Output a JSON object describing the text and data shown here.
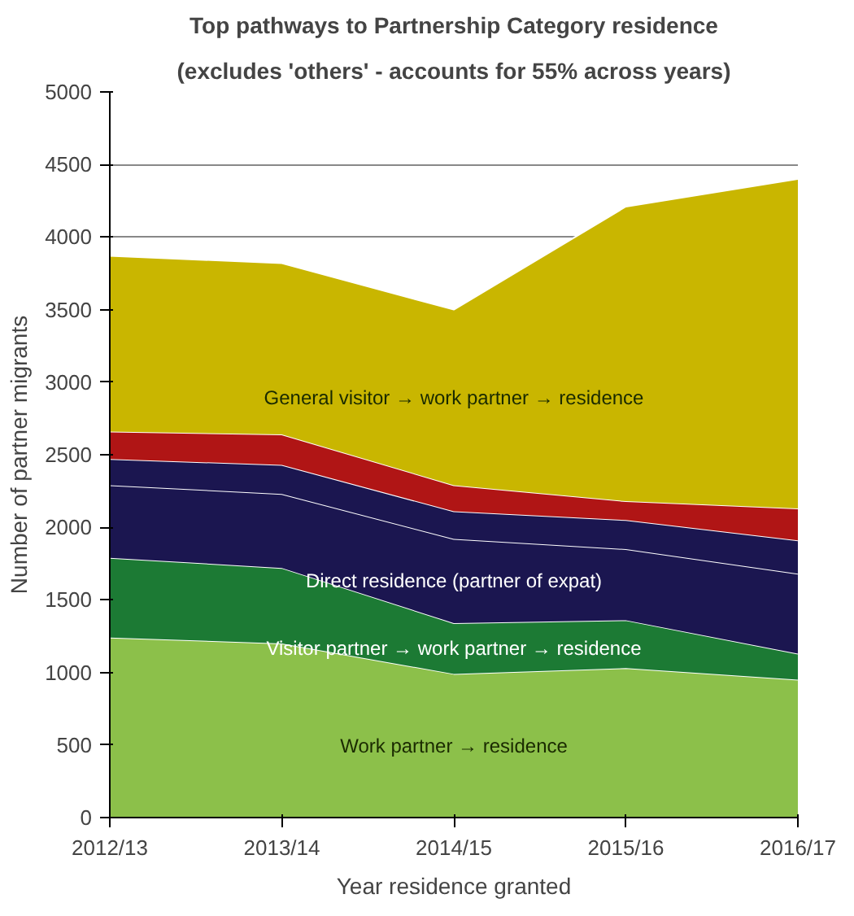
{
  "chart_data": {
    "type": "area",
    "stacked": true,
    "title": "Top pathways to Partnership Category residence",
    "subtitle": "(excludes 'others' - accounts for 55% across years)",
    "xlabel": "Year residence granted",
    "ylabel": "Number of partner migrants",
    "categories": [
      "2012/13",
      "2013/14",
      "2014/15",
      "2015/16",
      "2016/17"
    ],
    "ylim": [
      0,
      5000
    ],
    "yticks": [
      0,
      500,
      1000,
      1500,
      2000,
      2500,
      3000,
      3500,
      4000,
      4500,
      5000
    ],
    "grid": "y",
    "series": [
      {
        "name": "Work partner → residence",
        "color": "#8cc04a",
        "values": [
          1240,
          1200,
          990,
          1030,
          950
        ]
      },
      {
        "name": "Visitor partner → work partner → residence",
        "color": "#1c7a34",
        "values": [
          550,
          520,
          350,
          330,
          180
        ]
      },
      {
        "name": "Direct residence (partner of expat)",
        "color": "#1b1650",
        "values": [
          500,
          510,
          580,
          490,
          550
        ]
      },
      {
        "color": "#1b1650",
        "values": [
          180,
          200,
          190,
          200,
          230
        ]
      },
      {
        "color": "#b01515",
        "values": [
          190,
          210,
          180,
          130,
          220
        ]
      },
      {
        "name": "General visitor → work partner → residence",
        "color": "#c9b600",
        "values": [
          1210,
          1180,
          1210,
          2030,
          2270
        ]
      }
    ]
  }
}
